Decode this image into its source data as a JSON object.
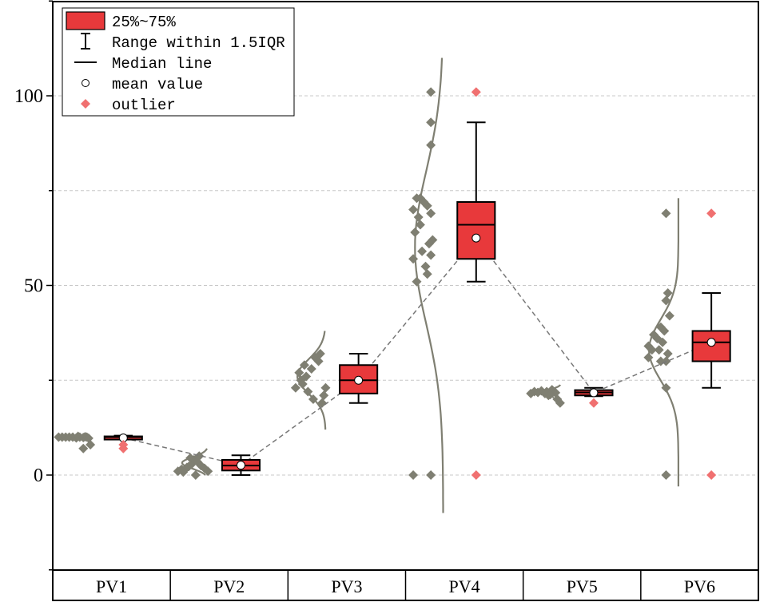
{
  "chart_data": {
    "type": "box",
    "y_ticks": [
      "100",
      "50",
      "0"
    ],
    "ylim": [
      -25,
      125
    ],
    "categories": [
      "PV1",
      "PV2",
      "PV3",
      "PV4",
      "PV5",
      "PV6"
    ],
    "grid": "horizontal dashed",
    "legend_position": "top-left",
    "legend": {
      "box": "25%~75%",
      "range": "Range within 1.5IQR",
      "median": "Median line",
      "mean": "mean value",
      "outlier": "outlier"
    },
    "colors": {
      "box": "#e8393b",
      "points": "#7f7f72",
      "outlier": "#f07070",
      "curve": "#7f7f72"
    },
    "boxes": [
      {
        "name": "PV1",
        "q1": 9.8,
        "median": 10,
        "q3": 10.2,
        "whisker_low": 9.6,
        "whisker_high": 10.4,
        "mean": 9.8,
        "outliers": [
          7,
          8
        ]
      },
      {
        "name": "PV2",
        "q1": 1.2,
        "median": 2.5,
        "q3": 4,
        "whisker_low": 0,
        "whisker_high": 5.2,
        "mean": 2.6,
        "outliers": []
      },
      {
        "name": "PV3",
        "q1": 21.5,
        "median": 25,
        "q3": 29,
        "whisker_low": 19,
        "whisker_high": 32,
        "mean": 25,
        "outliers": []
      },
      {
        "name": "PV4",
        "q1": 57,
        "median": 66,
        "q3": 72,
        "whisker_low": 51,
        "whisker_high": 93,
        "mean": 62.5,
        "outliers": [
          101,
          0
        ]
      },
      {
        "name": "PV5",
        "q1": 21,
        "median": 21.8,
        "q3": 22.4,
        "whisker_low": 20.8,
        "whisker_high": 23,
        "mean": 21.7,
        "outliers": [
          19
        ]
      },
      {
        "name": "PV6",
        "q1": 30,
        "median": 35,
        "q3": 38,
        "whisker_low": 23,
        "whisker_high": 48,
        "mean": 35,
        "outliers": [
          69,
          0
        ]
      }
    ],
    "points": [
      [
        [
          10,
          0
        ],
        [
          10,
          0.1
        ],
        [
          10,
          0.2
        ],
        [
          10,
          0.3
        ],
        [
          10,
          0.4
        ],
        [
          9.8,
          0.5
        ],
        [
          10.2,
          0.55
        ],
        [
          10,
          0.6
        ],
        [
          9.9,
          0.7
        ],
        [
          10.1,
          0.75
        ],
        [
          10,
          0.8
        ],
        [
          9.7,
          0.85
        ],
        [
          8,
          0.9
        ],
        [
          7,
          0.7
        ]
      ],
      [
        [
          1,
          0.05
        ],
        [
          1.5,
          0.15
        ],
        [
          2,
          0.3
        ],
        [
          0.8,
          0.2
        ],
        [
          3,
          0.45
        ],
        [
          4,
          0.5
        ],
        [
          4.5,
          0.4
        ],
        [
          3.5,
          0.6
        ],
        [
          2.5,
          0.7
        ],
        [
          1.8,
          0.8
        ],
        [
          5,
          0.65
        ],
        [
          0,
          0.55
        ],
        [
          1,
          0.9
        ],
        [
          2.2,
          0.35
        ]
      ],
      [
        [
          23,
          0.05
        ],
        [
          25,
          0.2
        ],
        [
          27,
          0.15
        ],
        [
          29,
          0.3
        ],
        [
          26,
          0.35
        ],
        [
          24,
          0.25
        ],
        [
          22,
          0.4
        ],
        [
          20,
          0.55
        ],
        [
          31,
          0.6
        ],
        [
          30,
          0.7
        ],
        [
          32,
          0.75
        ],
        [
          19,
          0.8
        ],
        [
          21,
          0.85
        ],
        [
          23,
          0.9
        ],
        [
          28,
          0.5
        ]
      ],
      [
        [
          101,
          0.55
        ],
        [
          93,
          0.55
        ],
        [
          87,
          0.55
        ],
        [
          73,
          0.15
        ],
        [
          73,
          0.25
        ],
        [
          72,
          0.35
        ],
        [
          71,
          0.45
        ],
        [
          70,
          0.05
        ],
        [
          68,
          0.2
        ],
        [
          69,
          0.55
        ],
        [
          66,
          0.25
        ],
        [
          64,
          0.1
        ],
        [
          62,
          0.6
        ],
        [
          61,
          0.5
        ],
        [
          59,
          0.3
        ],
        [
          58,
          0.55
        ],
        [
          57,
          0.05
        ],
        [
          55,
          0.4
        ],
        [
          53,
          0.45
        ],
        [
          51,
          0.15
        ],
        [
          0,
          0.05
        ],
        [
          0,
          0.55
        ]
      ],
      [
        [
          21.5,
          0.05
        ],
        [
          22,
          0.15
        ],
        [
          21.8,
          0.25
        ],
        [
          22.2,
          0.35
        ],
        [
          21.5,
          0.45
        ],
        [
          21,
          0.55
        ],
        [
          22.5,
          0.65
        ],
        [
          21.7,
          0.75
        ],
        [
          20,
          0.8
        ],
        [
          19,
          0.88
        ],
        [
          22,
          0.5
        ],
        [
          21.2,
          0.6
        ]
      ],
      [
        [
          69,
          0.55
        ],
        [
          48,
          0.6
        ],
        [
          46,
          0.55
        ],
        [
          42,
          0.65
        ],
        [
          39,
          0.4
        ],
        [
          38,
          0.5
        ],
        [
          37,
          0.2
        ],
        [
          36,
          0.3
        ],
        [
          35,
          0.45
        ],
        [
          34,
          0.05
        ],
        [
          33,
          0.15
        ],
        [
          33,
          0.35
        ],
        [
          32,
          0.6
        ],
        [
          31,
          0.05
        ],
        [
          30,
          0.4
        ],
        [
          30,
          0.55
        ],
        [
          23,
          0.55
        ],
        [
          0,
          0.55
        ]
      ]
    ],
    "curves": [
      {
        "mean": 10,
        "sd": 0.6,
        "lo": 8.5,
        "hi": 11.5,
        "amp": 0
      },
      {
        "mean": 3.2,
        "sd": 1.5,
        "lo": 0,
        "hi": 7,
        "amp": 0.22
      },
      {
        "mean": 26,
        "sd": 4.5,
        "lo": 12,
        "hi": 38,
        "amp": 0.24
      },
      {
        "mean": 60,
        "sd": 20,
        "lo": -10,
        "hi": 110,
        "amp": 0.24
      },
      {
        "mean": 21.7,
        "sd": 0.8,
        "lo": 20.5,
        "hi": 23.8,
        "amp": 0.18
      },
      {
        "mean": 33,
        "sd": 8,
        "lo": -3,
        "hi": 73,
        "amp": 0.25
      }
    ]
  }
}
